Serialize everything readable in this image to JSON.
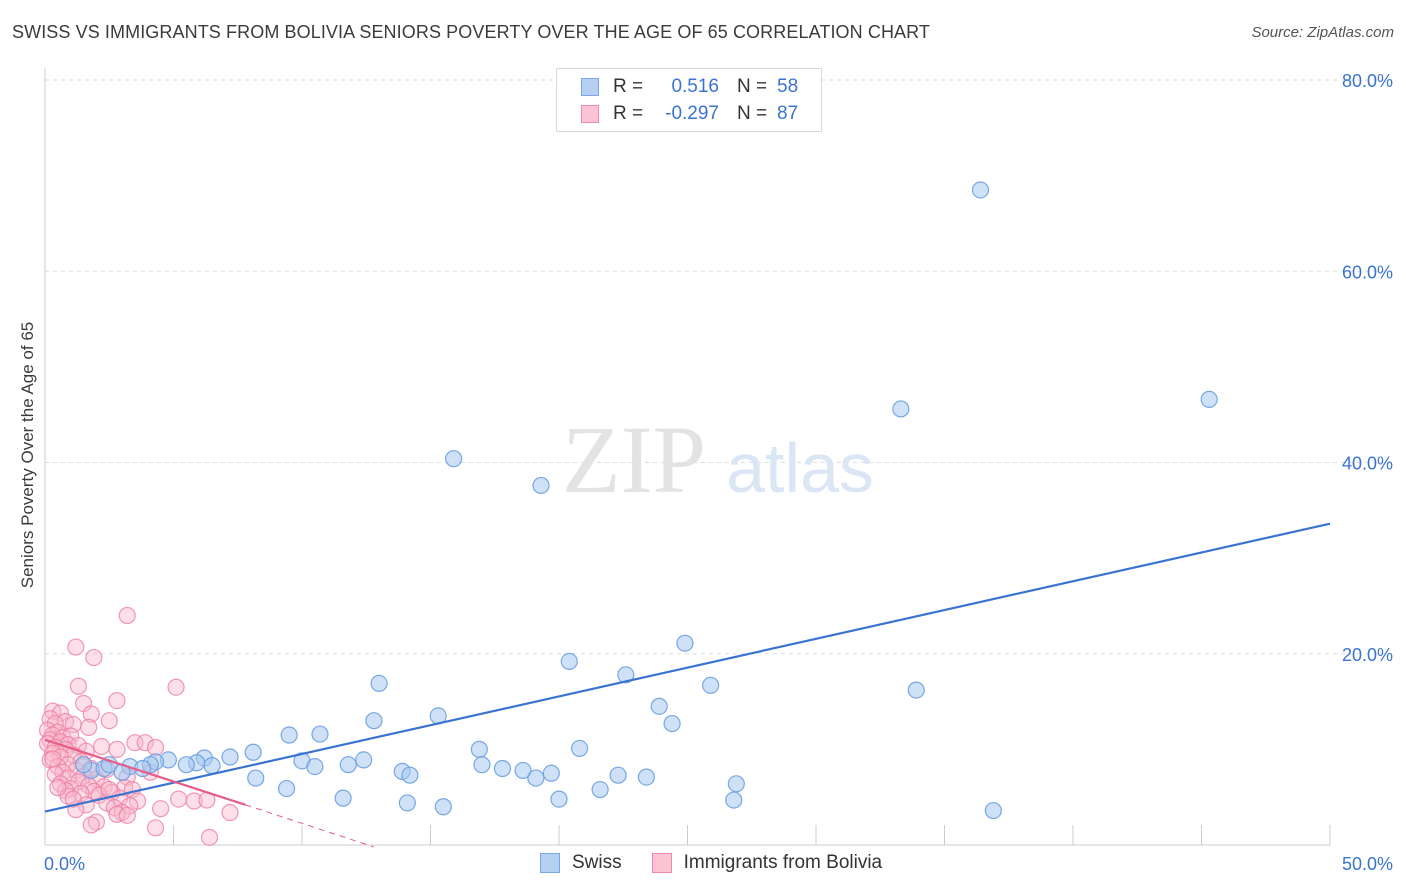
{
  "title": "SWISS VS IMMIGRANTS FROM BOLIVIA SENIORS POVERTY OVER THE AGE OF 65 CORRELATION CHART",
  "source": "Source: ZipAtlas.com",
  "watermark": {
    "zip": "ZIP",
    "atlas": "atlas"
  },
  "legend_top": [
    {
      "r_label": "R =",
      "r_value": "0.516",
      "n_label": "N =",
      "n_value": "58"
    },
    {
      "r_label": "R =",
      "r_value": "-0.297",
      "n_label": "N =",
      "n_value": "87"
    }
  ],
  "legend_bottom": [
    "Swiss",
    "Immigrants from Bolivia"
  ],
  "colors": {
    "swiss_fill": "#a8c8f0",
    "swiss_stroke": "#6a9fe0",
    "swiss_line": "#3a74d0",
    "bolivia_fill": "#f8b8cc",
    "bolivia_stroke": "#ee7fa2",
    "bolivia_line": "#e85d88",
    "axis_label": "#3a74d0",
    "grid": "#dddddd"
  },
  "chart_data": {
    "type": "scatter",
    "title": "SWISS VS IMMIGRANTS FROM BOLIVIA SENIORS POVERTY OVER THE AGE OF 65 CORRELATION CHART",
    "xlabel": "",
    "ylabel": "Seniors Poverty Over the Age of 65",
    "xlim": [
      0,
      50
    ],
    "ylim": [
      0,
      80
    ],
    "x_tick_labels": [
      {
        "value": 0,
        "label": "0.0%"
      },
      {
        "value": 50,
        "label": "50.0%"
      }
    ],
    "y_tick_labels": [
      {
        "value": 20,
        "label": "20.0%"
      },
      {
        "value": 40,
        "label": "40.0%"
      },
      {
        "value": 60,
        "label": "60.0%"
      },
      {
        "value": 80,
        "label": "80.0%"
      }
    ],
    "series": [
      {
        "name": "Swiss",
        "points": [
          [
            36.4,
            68.5
          ],
          [
            45.3,
            46.6
          ],
          [
            33.3,
            45.6
          ],
          [
            15.9,
            40.4
          ],
          [
            19.3,
            37.6
          ],
          [
            24.9,
            21.1
          ],
          [
            20.4,
            19.2
          ],
          [
            22.6,
            17.8
          ],
          [
            25.9,
            16.7
          ],
          [
            33.9,
            16.2
          ],
          [
            13.0,
            16.9
          ],
          [
            23.9,
            14.5
          ],
          [
            24.4,
            12.7
          ],
          [
            15.3,
            13.5
          ],
          [
            12.8,
            13.0
          ],
          [
            9.5,
            11.5
          ],
          [
            10.7,
            11.6
          ],
          [
            20.8,
            10.1
          ],
          [
            16.9,
            10.0
          ],
          [
            8.1,
            9.7
          ],
          [
            7.2,
            9.2
          ],
          [
            6.2,
            9.1
          ],
          [
            5.9,
            8.6
          ],
          [
            4.8,
            8.9
          ],
          [
            4.3,
            8.7
          ],
          [
            12.4,
            8.9
          ],
          [
            10.0,
            8.8
          ],
          [
            5.5,
            8.4
          ],
          [
            6.5,
            8.3
          ],
          [
            4.1,
            8.4
          ],
          [
            3.3,
            8.2
          ],
          [
            3.8,
            8.0
          ],
          [
            1.8,
            7.8
          ],
          [
            2.3,
            8.0
          ],
          [
            2.5,
            8.4
          ],
          [
            11.8,
            8.4
          ],
          [
            10.5,
            8.2
          ],
          [
            17.0,
            8.4
          ],
          [
            17.8,
            8.0
          ],
          [
            18.6,
            7.8
          ],
          [
            13.9,
            7.7
          ],
          [
            14.2,
            7.3
          ],
          [
            19.7,
            7.5
          ],
          [
            22.3,
            7.3
          ],
          [
            23.4,
            7.1
          ],
          [
            19.1,
            7.0
          ],
          [
            8.2,
            7.0
          ],
          [
            26.9,
            6.4
          ],
          [
            9.4,
            5.9
          ],
          [
            21.6,
            5.8
          ],
          [
            11.6,
            4.9
          ],
          [
            20.0,
            4.8
          ],
          [
            26.8,
            4.7
          ],
          [
            14.1,
            4.4
          ],
          [
            15.5,
            4.0
          ],
          [
            36.9,
            3.6
          ],
          [
            1.5,
            8.4
          ],
          [
            3.0,
            7.6
          ]
        ]
      },
      {
        "name": "Immigrants from Bolivia",
        "points": [
          [
            3.2,
            24.0
          ],
          [
            1.2,
            20.7
          ],
          [
            1.9,
            19.6
          ],
          [
            5.1,
            16.5
          ],
          [
            1.3,
            16.6
          ],
          [
            1.5,
            14.8
          ],
          [
            2.8,
            15.1
          ],
          [
            0.3,
            14.0
          ],
          [
            0.6,
            13.8
          ],
          [
            1.8,
            13.7
          ],
          [
            0.2,
            13.2
          ],
          [
            0.8,
            12.9
          ],
          [
            0.4,
            12.7
          ],
          [
            2.5,
            13.0
          ],
          [
            1.1,
            12.6
          ],
          [
            1.7,
            12.3
          ],
          [
            0.1,
            12.0
          ],
          [
            0.5,
            11.8
          ],
          [
            0.3,
            11.5
          ],
          [
            0.7,
            11.2
          ],
          [
            1.0,
            11.4
          ],
          [
            0.2,
            11.0
          ],
          [
            0.6,
            10.8
          ],
          [
            0.1,
            10.6
          ],
          [
            0.9,
            10.5
          ],
          [
            1.3,
            10.4
          ],
          [
            2.2,
            10.3
          ],
          [
            0.4,
            10.2
          ],
          [
            0.8,
            10.0
          ],
          [
            3.5,
            10.7
          ],
          [
            3.9,
            10.7
          ],
          [
            4.3,
            10.2
          ],
          [
            2.8,
            10.0
          ],
          [
            1.6,
            9.8
          ],
          [
            0.3,
            9.6
          ],
          [
            1.1,
            9.4
          ],
          [
            0.6,
            9.2
          ],
          [
            0.2,
            8.9
          ],
          [
            1.4,
            8.7
          ],
          [
            0.9,
            8.4
          ],
          [
            0.5,
            8.2
          ],
          [
            1.8,
            8.0
          ],
          [
            1.2,
            7.8
          ],
          [
            0.7,
            7.6
          ],
          [
            2.4,
            7.9
          ],
          [
            4.1,
            7.6
          ],
          [
            0.4,
            7.4
          ],
          [
            1.5,
            7.2
          ],
          [
            0.9,
            7.0
          ],
          [
            3.2,
            7.1
          ],
          [
            2.0,
            6.9
          ],
          [
            1.3,
            6.6
          ],
          [
            0.6,
            6.4
          ],
          [
            1.7,
            6.2
          ],
          [
            2.3,
            6.1
          ],
          [
            3.1,
            6.0
          ],
          [
            1.0,
            5.9
          ],
          [
            0.8,
            5.7
          ],
          [
            1.9,
            5.6
          ],
          [
            2.6,
            5.5
          ],
          [
            3.4,
            5.8
          ],
          [
            1.4,
            5.4
          ],
          [
            2.1,
            5.2
          ],
          [
            0.9,
            5.1
          ],
          [
            2.9,
            4.9
          ],
          [
            5.2,
            4.8
          ],
          [
            5.8,
            4.6
          ],
          [
            6.3,
            4.7
          ],
          [
            3.6,
            4.6
          ],
          [
            2.4,
            4.4
          ],
          [
            1.6,
            4.2
          ],
          [
            3.3,
            4.1
          ],
          [
            2.7,
            3.9
          ],
          [
            4.5,
            3.8
          ],
          [
            1.2,
            3.7
          ],
          [
            3.0,
            3.4
          ],
          [
            2.8,
            3.2
          ],
          [
            7.2,
            3.4
          ],
          [
            3.2,
            3.1
          ],
          [
            2.0,
            2.4
          ],
          [
            1.8,
            2.1
          ],
          [
            4.3,
            1.8
          ],
          [
            6.4,
            0.8
          ],
          [
            0.5,
            6.0
          ],
          [
            1.1,
            4.8
          ],
          [
            2.5,
            5.8
          ],
          [
            0.3,
            9.0
          ]
        ]
      }
    ],
    "trend_lines": [
      {
        "series": "Swiss",
        "x": [
          0,
          50
        ],
        "y": [
          3.5,
          33.6
        ],
        "style": "solid"
      },
      {
        "series": "Immigrants from Bolivia",
        "x": [
          0,
          7.8
        ],
        "y": [
          11.0,
          4.2
        ],
        "style": "solid"
      },
      {
        "series": "Immigrants from Bolivia",
        "x": [
          7.8,
          12.8
        ],
        "y": [
          4.2,
          -0.2
        ],
        "style": "dashed"
      }
    ]
  }
}
